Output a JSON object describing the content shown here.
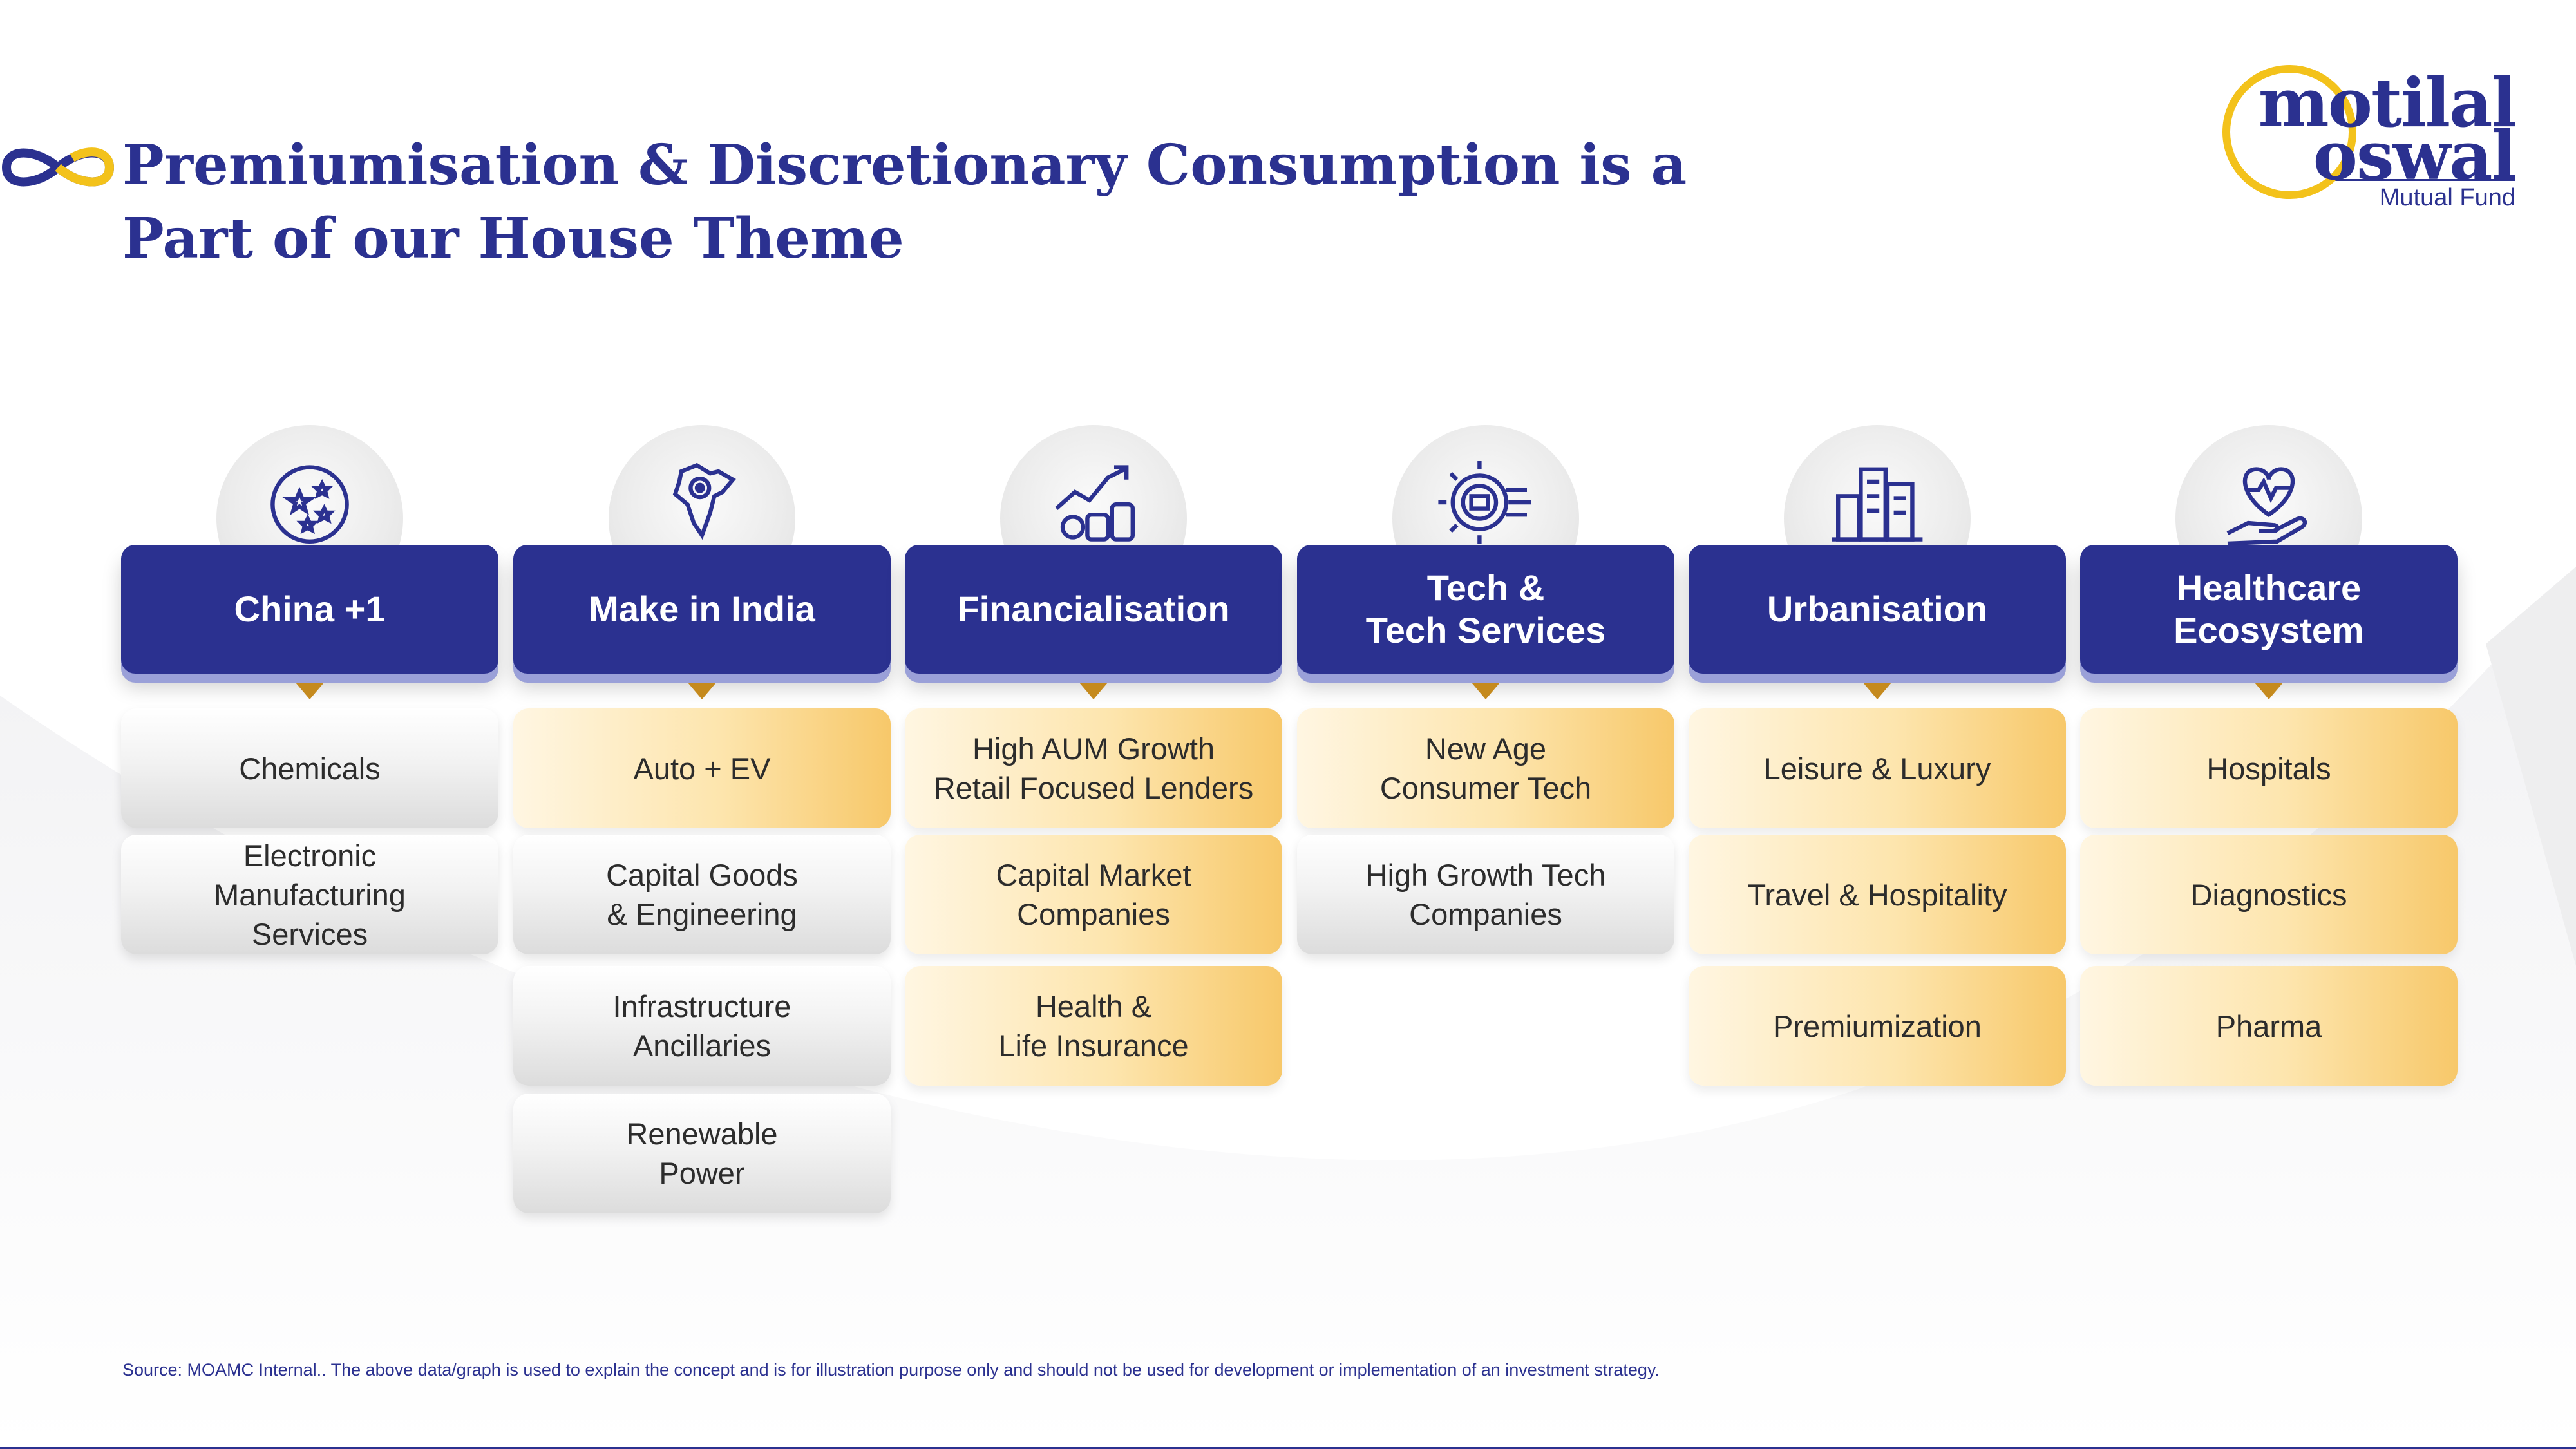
{
  "title": "Premiumisation & Discretionary Consumption is a Part of our House Theme",
  "logo": {
    "word1": "motilal",
    "word2": "oswal",
    "subtitle": "Mutual Fund"
  },
  "colors": {
    "primary": "#2b3190",
    "accent_gold": "#f7c86a",
    "pointer_gold": "#c58a1e",
    "logo_ring": "#f3c21b"
  },
  "themes": [
    {
      "name": "China +1",
      "icon": "globe-stars-icon",
      "items": [
        {
          "label": "Chemicals",
          "style": "gray"
        },
        {
          "label": "Electronic\nManufacturing\nServices",
          "style": "gray"
        }
      ]
    },
    {
      "name": "Make in India",
      "icon": "india-map-pin-icon",
      "items": [
        {
          "label": "Auto + EV",
          "style": "gold"
        },
        {
          "label": "Capital Goods\n& Engineering",
          "style": "gray"
        },
        {
          "label": "Infrastructure\nAncillaries",
          "style": "gray"
        },
        {
          "label": "Renewable\nPower",
          "style": "gray"
        }
      ]
    },
    {
      "name": "Financialisation",
      "icon": "growth-coins-icon",
      "items": [
        {
          "label": "High AUM Growth\nRetail Focused Lenders",
          "style": "gold"
        },
        {
          "label": "Capital Market\nCompanies",
          "style": "gold"
        },
        {
          "label": "Health &\nLife Insurance",
          "style": "gold"
        }
      ]
    },
    {
      "name": "Tech &\nTech Services",
      "icon": "gear-circuit-icon",
      "items": [
        {
          "label": "New Age\nConsumer Tech",
          "style": "gold"
        },
        {
          "label": "High Growth Tech\nCompanies",
          "style": "gray"
        }
      ]
    },
    {
      "name": "Urbanisation",
      "icon": "city-buildings-icon",
      "items": [
        {
          "label": "Leisure & Luxury",
          "style": "gold"
        },
        {
          "label": "Travel & Hospitality",
          "style": "gold"
        },
        {
          "label": "Premiumization",
          "style": "gold"
        }
      ]
    },
    {
      "name": "Healthcare\nEcosystem",
      "icon": "heart-hand-icon",
      "items": [
        {
          "label": "Hospitals",
          "style": "gold"
        },
        {
          "label": "Diagnostics",
          "style": "gold"
        },
        {
          "label": "Pharma",
          "style": "gold"
        }
      ]
    }
  ],
  "footnote": "Source: MOAMC Internal.. The above data/graph is used to explain the concept and is for illustration purpose only and should not be used for development or implementation of an investment strategy."
}
